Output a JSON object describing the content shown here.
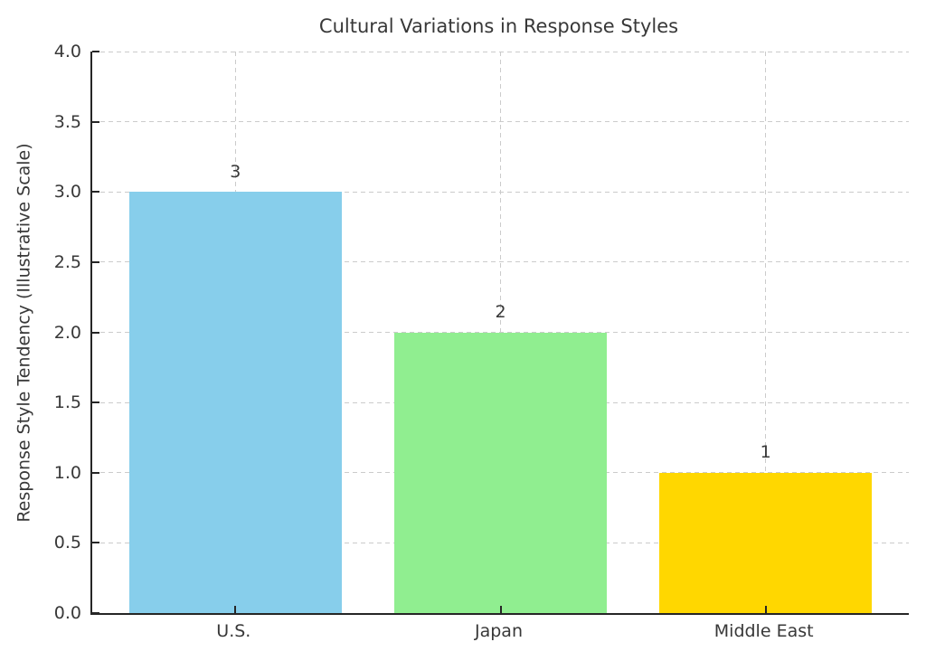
{
  "chart_data": {
    "type": "bar",
    "title": "Cultural Variations in Response Styles",
    "xlabel": "",
    "ylabel": "Response Style Tendency (Illustrative Scale)",
    "categories": [
      "U.S.",
      "Japan",
      "Middle East"
    ],
    "values": [
      3,
      2,
      1
    ],
    "bar_labels": [
      "3",
      "2",
      "1"
    ],
    "bar_colors": [
      "#87ceeb",
      "#90ee90",
      "#ffd700"
    ],
    "ylim": [
      0,
      4
    ],
    "yticks": [
      "0.0",
      "0.5",
      "1.0",
      "1.5",
      "2.0",
      "2.5",
      "3.0",
      "3.5",
      "4.0"
    ],
    "grid": "dashed gray, horizontal and vertical, drawn below bars",
    "legend_position": "none"
  },
  "colors": {
    "background": "#ffffff",
    "text": "#383838",
    "spine": "#262626",
    "grid": "#cbcbcb"
  }
}
